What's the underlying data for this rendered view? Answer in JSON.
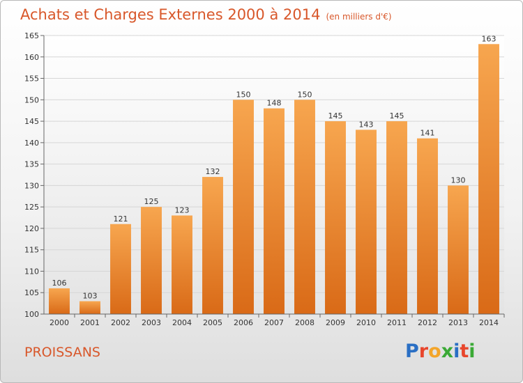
{
  "header": {
    "title": "Achats et Charges Externes 2000 à 2014",
    "subtitle": "(en milliers d'€)"
  },
  "footer": {
    "commune": "PROISSANS",
    "logo_letters": [
      "P",
      "r",
      "o",
      "x",
      "i",
      "t",
      "i"
    ],
    "logo_colors": [
      "#2a6fc4",
      "#e8462c",
      "#f3a52a",
      "#3aa935",
      "#2a6fc4",
      "#e8462c",
      "#3aa935"
    ]
  },
  "colors": {
    "bar_top": "#f7a64f",
    "bar_bottom": "#d96a17",
    "grid": "#d6d6d6",
    "axis_text": "#333333"
  },
  "chart_data": {
    "type": "bar",
    "title": "Achats et Charges Externes 2000 à 2014",
    "subtitle": "(en milliers d'€)",
    "categories": [
      "2000",
      "2001",
      "2002",
      "2003",
      "2004",
      "2005",
      "2006",
      "2007",
      "2008",
      "2009",
      "2010",
      "2011",
      "2012",
      "2013",
      "2014"
    ],
    "values": [
      106,
      103,
      121,
      125,
      123,
      132,
      150,
      148,
      150,
      145,
      143,
      145,
      141,
      130,
      163
    ],
    "data_labels": [
      "106",
      "103",
      "121",
      "125",
      "123",
      "132",
      "150",
      "148",
      "150",
      "145",
      "143",
      "145",
      "141",
      "130",
      "163"
    ],
    "ylim": [
      100,
      165
    ],
    "yticks": [
      100,
      105,
      110,
      115,
      120,
      125,
      130,
      135,
      140,
      145,
      150,
      155,
      160,
      165
    ],
    "ytick_labels": [
      "100",
      "105",
      "110",
      "115",
      "120",
      "125",
      "130",
      "135",
      "140",
      "145",
      "150",
      "155",
      "160",
      "165"
    ],
    "grid": true,
    "legend": "none"
  }
}
